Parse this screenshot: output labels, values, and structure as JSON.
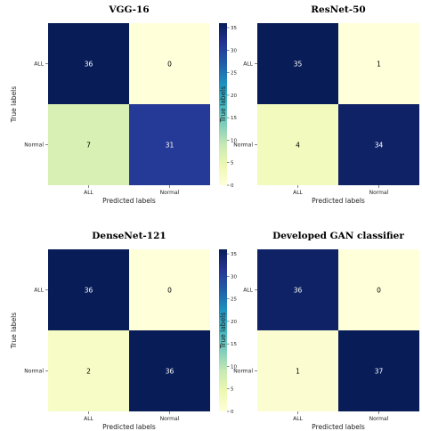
{
  "colors": {
    "scale": [
      "#ffffd9",
      "#edf8b1",
      "#c7e9b4",
      "#7fcdbb",
      "#41b6c4",
      "#1d91c0",
      "#225ea8",
      "#253494",
      "#081d58"
    ]
  },
  "chart_data": [
    {
      "type": "heatmap",
      "title": "VGG-16",
      "xlabel": "Predicted labels",
      "ylabel": "True labels",
      "x_categories": [
        "ALL",
        "Normal"
      ],
      "y_categories": [
        "ALL",
        "Normal"
      ],
      "values": [
        [
          36,
          0
        ],
        [
          7,
          31
        ]
      ],
      "colorbar": {
        "vmin": 0,
        "vmax": 36,
        "ticks": [
          0,
          5,
          10,
          15,
          20,
          25,
          30,
          35
        ]
      }
    },
    {
      "type": "heatmap",
      "title": "ResNet-50",
      "xlabel": "Predicted labels",
      "ylabel": "True labels",
      "x_categories": [
        "ALL",
        "Normal"
      ],
      "y_categories": [
        "ALL",
        "Normal"
      ],
      "values": [
        [
          35,
          1
        ],
        [
          4,
          34
        ]
      ],
      "colorbar": {
        "vmin": 1,
        "vmax": 35,
        "ticks": [
          5,
          10,
          15,
          20,
          25,
          30,
          35
        ]
      }
    },
    {
      "type": "heatmap",
      "title": "DenseNet-121",
      "xlabel": "Predicted labels",
      "ylabel": "True labels",
      "x_categories": [
        "ALL",
        "Normal"
      ],
      "y_categories": [
        "ALL",
        "Normal"
      ],
      "values": [
        [
          36,
          0
        ],
        [
          2,
          36
        ]
      ],
      "colorbar": {
        "vmin": 0,
        "vmax": 36,
        "ticks": [
          0,
          5,
          10,
          15,
          20,
          25,
          30,
          35
        ]
      }
    },
    {
      "type": "heatmap",
      "title": "Developed GAN classifier",
      "xlabel": "Predicted labels",
      "ylabel": "True labels",
      "x_categories": [
        "ALL",
        "Normal"
      ],
      "y_categories": [
        "ALL",
        "Normal"
      ],
      "values": [
        [
          36,
          0
        ],
        [
          1,
          37
        ]
      ],
      "colorbar": {
        "vmin": 0,
        "vmax": 37,
        "ticks": [
          0,
          5,
          10,
          15,
          20,
          25,
          30,
          35
        ]
      }
    }
  ]
}
